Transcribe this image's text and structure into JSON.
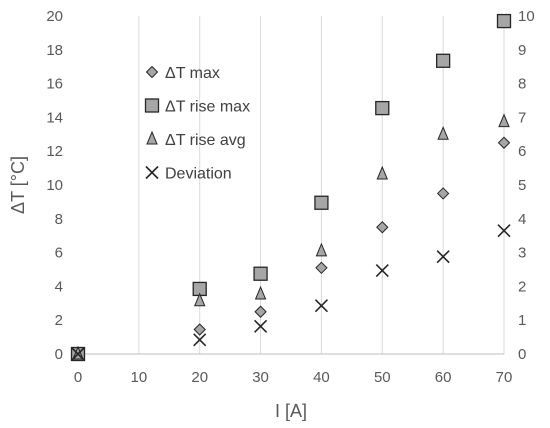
{
  "chart_data": {
    "type": "scatter",
    "xlabel": "I [A]",
    "ylabel": "ΔT [°C]",
    "xlim": [
      0,
      70
    ],
    "ylim": [
      0,
      20
    ],
    "y2lim": [
      0,
      10
    ],
    "xticks": [
      "0",
      "10",
      "20",
      "30",
      "40",
      "50",
      "60",
      "70"
    ],
    "yticks": [
      "0",
      "2",
      "4",
      "6",
      "8",
      "10",
      "12",
      "14",
      "16",
      "18",
      "20"
    ],
    "y2ticks": [
      "0",
      "1",
      "2",
      "3",
      "4",
      "5",
      "6",
      "7",
      "8",
      "9",
      "10"
    ],
    "grid": "vertical",
    "legend_position": "top-left",
    "series": [
      {
        "name": "ΔT max",
        "marker": "diamond",
        "axis": "left",
        "x": [
          0,
          20,
          30,
          40,
          50,
          60,
          70
        ],
        "y": [
          0,
          1.45,
          2.5,
          5.1,
          7.5,
          9.5,
          12.5
        ]
      },
      {
        "name": "ΔT rise max",
        "marker": "square",
        "axis": "left",
        "x": [
          0,
          20,
          30,
          40,
          50,
          60,
          70
        ],
        "y": [
          0,
          3.85,
          4.75,
          8.95,
          14.55,
          17.35,
          19.7
        ]
      },
      {
        "name": "ΔT rise avg",
        "marker": "triangle",
        "axis": "left",
        "x": [
          0,
          20,
          30,
          40,
          50,
          60,
          70
        ],
        "y": [
          0,
          3.15,
          3.55,
          6.1,
          10.65,
          13.0,
          13.75
        ]
      },
      {
        "name": "Deviation",
        "marker": "x",
        "axis": "right",
        "x": [
          0,
          20,
          30,
          40,
          50,
          60,
          70
        ],
        "y": [
          0,
          0.42,
          0.82,
          1.43,
          2.47,
          2.88,
          3.65
        ]
      }
    ]
  }
}
